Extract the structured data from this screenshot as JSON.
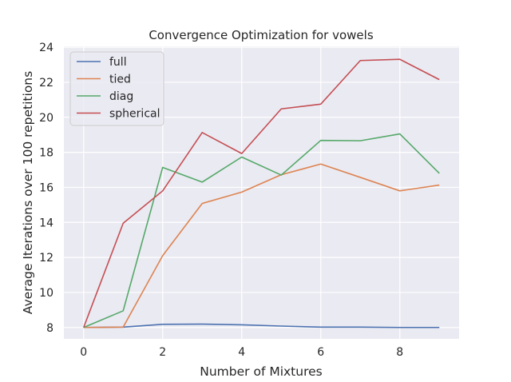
{
  "chart_data": {
    "type": "line",
    "title": "Convergence Optimization for vowels",
    "xlabel": "Number of Mixtures",
    "ylabel": "Average Iterations over 100 repetitions",
    "xlim": [
      -0.5,
      9.5
    ],
    "ylim": [
      7.35,
      24.05
    ],
    "x": [
      0,
      1,
      2,
      3,
      4,
      5,
      6,
      7,
      8,
      9
    ],
    "x_ticks": [
      0,
      2,
      4,
      6,
      8
    ],
    "y_ticks": [
      8,
      10,
      12,
      14,
      16,
      18,
      20,
      22,
      24
    ],
    "grid": true,
    "legend_position": "top-left",
    "background": "#eaeaf2",
    "series": [
      {
        "name": "full",
        "color": "#4c72b0",
        "values": [
          8.0,
          8.02,
          8.18,
          8.19,
          8.15,
          8.08,
          8.02,
          8.02,
          8.0,
          8.0
        ]
      },
      {
        "name": "tied",
        "color": "#dd8452",
        "values": [
          8.0,
          8.02,
          12.1,
          15.08,
          15.73,
          16.72,
          17.33,
          16.57,
          15.8,
          16.13
        ]
      },
      {
        "name": "diag",
        "color": "#55a868",
        "values": [
          8.0,
          8.95,
          17.14,
          16.3,
          17.73,
          16.7,
          18.68,
          18.66,
          19.05,
          16.8
        ]
      },
      {
        "name": "spherical",
        "color": "#c44e52",
        "values": [
          8.0,
          13.95,
          15.8,
          19.13,
          17.93,
          20.48,
          20.75,
          23.24,
          23.31,
          22.15
        ]
      }
    ]
  }
}
